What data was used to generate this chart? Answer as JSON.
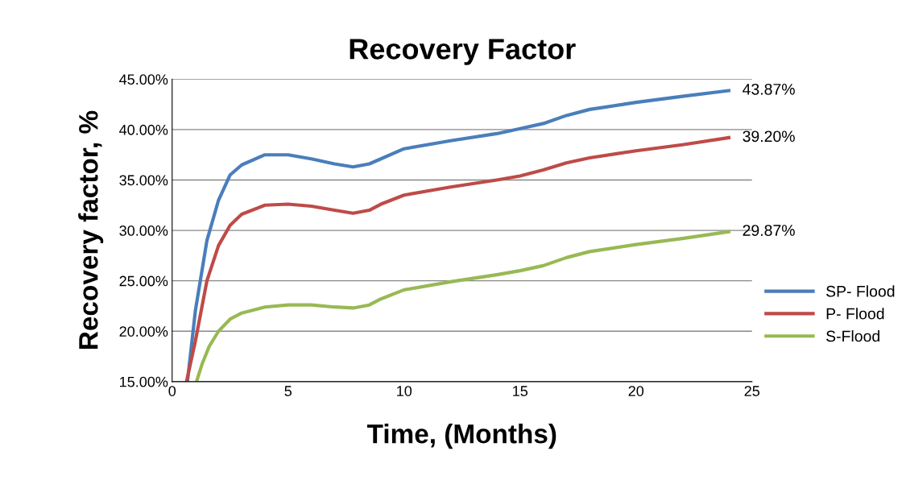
{
  "chart_data": {
    "type": "line",
    "title": "Recovery Factor",
    "xlabel": "Time, (Months)",
    "ylabel": "Recovery factor, %",
    "xlim": [
      0,
      25
    ],
    "xticks": [
      0,
      5,
      10,
      15,
      20,
      25
    ],
    "ylim": [
      15,
      45
    ],
    "yticks": [
      {
        "value": 15,
        "label": "15.00%"
      },
      {
        "value": 20,
        "label": "20.00%"
      },
      {
        "value": 25,
        "label": "25.00%"
      },
      {
        "value": 30,
        "label": "30.00%"
      },
      {
        "value": 35,
        "label": "35.00%"
      },
      {
        "value": 40,
        "label": "40.00%"
      },
      {
        "value": 45,
        "label": "45.00%"
      }
    ],
    "grid": "y",
    "legend": "right",
    "marker": "none",
    "series": [
      {
        "name": "SP- Flood",
        "color": "#4a7ebb",
        "x": [
          0.66,
          1,
          1.5,
          2,
          2.5,
          3,
          4,
          5,
          6,
          7,
          7.8,
          8.5,
          9,
          10,
          12,
          14,
          15,
          16,
          17,
          18,
          20,
          22,
          24
        ],
        "values": [
          15,
          22,
          29,
          33,
          35.5,
          36.5,
          37.5,
          37.5,
          37.1,
          36.6,
          36.3,
          36.6,
          37.1,
          38.1,
          38.9,
          39.6,
          40.1,
          40.6,
          41.4,
          42,
          42.7,
          43.3,
          43.87
        ],
        "value_labels": [
          null,
          null,
          null,
          null,
          null,
          null,
          null,
          null,
          null,
          null,
          null,
          null,
          null,
          null,
          null,
          null,
          null,
          null,
          null,
          null,
          null,
          null,
          "43.87%"
        ]
      },
      {
        "name": "P- Flood",
        "color": "#be4b48",
        "x": [
          0.62,
          1,
          1.5,
          2,
          2.5,
          3,
          4,
          5,
          6,
          7,
          7.8,
          8.5,
          9,
          10,
          12,
          14,
          15,
          16,
          17,
          18,
          20,
          22,
          24
        ],
        "values": [
          15,
          19,
          25,
          28.5,
          30.5,
          31.6,
          32.5,
          32.6,
          32.4,
          32,
          31.7,
          32,
          32.6,
          33.5,
          34.3,
          35,
          35.4,
          36,
          36.7,
          37.2,
          37.9,
          38.5,
          39.2
        ],
        "value_labels": [
          null,
          null,
          null,
          null,
          null,
          null,
          null,
          null,
          null,
          null,
          null,
          null,
          null,
          null,
          null,
          null,
          null,
          null,
          null,
          null,
          null,
          null,
          "39.20%"
        ]
      },
      {
        "name": "S-Flood",
        "color": "#98b954",
        "x": [
          1.05,
          1.3,
          1.6,
          2,
          2.5,
          3,
          4,
          5,
          6,
          7,
          7.8,
          8.5,
          9,
          10,
          12,
          14,
          15,
          16,
          17,
          18,
          20,
          22,
          24
        ],
        "values": [
          15,
          16.8,
          18.5,
          20,
          21.2,
          21.8,
          22.4,
          22.6,
          22.6,
          22.4,
          22.3,
          22.6,
          23.2,
          24.1,
          24.9,
          25.6,
          26,
          26.5,
          27.3,
          27.9,
          28.6,
          29.2,
          29.87
        ],
        "value_labels": [
          null,
          null,
          null,
          null,
          null,
          null,
          null,
          null,
          null,
          null,
          null,
          null,
          null,
          null,
          null,
          null,
          null,
          null,
          null,
          null,
          null,
          null,
          "29.87%"
        ]
      }
    ]
  }
}
